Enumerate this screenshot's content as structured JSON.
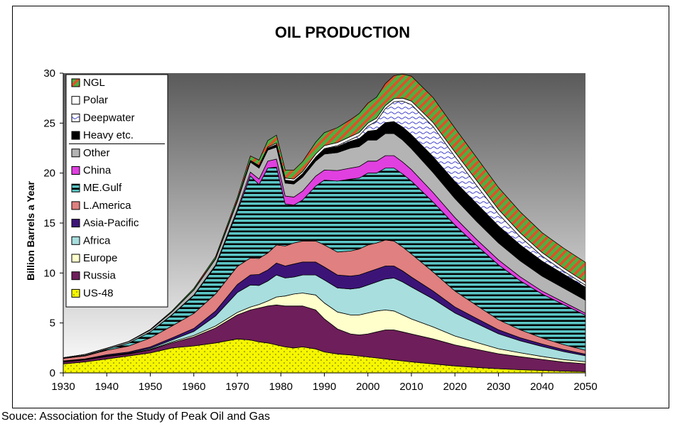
{
  "source": "Souce: Association for the Study of Peak Oil and Gas",
  "chart_data": {
    "type": "area",
    "stacked": true,
    "title": "OIL PRODUCTION",
    "xlabel": "",
    "ylabel": "Billion Barrels a Year",
    "xlim": [
      1930,
      2050
    ],
    "ylim": [
      0,
      30
    ],
    "xticks": [
      "1930",
      "1940",
      "1950",
      "1960",
      "1970",
      "1980",
      "1990",
      "2000",
      "2010",
      "2020",
      "2030",
      "2040",
      "2050"
    ],
    "yticks": [
      "0",
      "5",
      "10",
      "15",
      "20",
      "25",
      "30"
    ],
    "grid": false,
    "legend_position": "top-left",
    "background": "gradient-gray",
    "x": [
      1930,
      1935,
      1940,
      1945,
      1950,
      1955,
      1960,
      1965,
      1970,
      1973,
      1975,
      1977,
      1979,
      1981,
      1983,
      1985,
      1988,
      1990,
      1993,
      1996,
      1998,
      2000,
      2002,
      2004,
      2006,
      2008,
      2010,
      2015,
      2020,
      2025,
      2030,
      2035,
      2040,
      2045,
      2050
    ],
    "series": [
      {
        "name": "US-48",
        "color": "#f6f600",
        "pattern": "dots",
        "values": [
          0.9,
          1.1,
          1.4,
          1.7,
          2.0,
          2.5,
          2.7,
          3.0,
          3.4,
          3.3,
          3.1,
          3.0,
          2.8,
          2.6,
          2.5,
          2.6,
          2.4,
          2.1,
          1.9,
          1.8,
          1.7,
          1.6,
          1.5,
          1.4,
          1.3,
          1.2,
          1.1,
          0.9,
          0.7,
          0.55,
          0.42,
          0.32,
          0.25,
          0.18,
          0.12
        ]
      },
      {
        "name": "Russia",
        "color": "#6e1e5a",
        "pattern": "solid",
        "values": [
          0.2,
          0.2,
          0.25,
          0.2,
          0.3,
          0.5,
          0.9,
          1.5,
          2.4,
          3.0,
          3.4,
          3.7,
          4.0,
          4.1,
          4.2,
          4.1,
          3.9,
          3.3,
          2.5,
          2.1,
          2.1,
          2.3,
          2.6,
          2.9,
          3.0,
          2.9,
          2.8,
          2.5,
          2.1,
          1.8,
          1.5,
          1.3,
          1.1,
          0.9,
          0.8
        ]
      },
      {
        "name": "Europe",
        "color": "#ffffcc",
        "pattern": "solid",
        "values": [
          0.02,
          0.02,
          0.03,
          0.03,
          0.05,
          0.1,
          0.15,
          0.2,
          0.25,
          0.3,
          0.35,
          0.5,
          0.8,
          1.0,
          1.2,
          1.3,
          1.5,
          1.6,
          1.7,
          1.9,
          2.0,
          2.1,
          2.1,
          2.0,
          1.9,
          1.7,
          1.5,
          1.2,
          0.9,
          0.7,
          0.5,
          0.4,
          0.3,
          0.25,
          0.2
        ]
      },
      {
        "name": "Africa",
        "color": "#a8dede",
        "pattern": "solid",
        "values": [
          0.03,
          0.03,
          0.04,
          0.05,
          0.1,
          0.2,
          0.4,
          1.0,
          2.0,
          2.2,
          1.9,
          2.0,
          2.2,
          1.8,
          1.7,
          1.8,
          2.0,
          2.3,
          2.4,
          2.6,
          2.7,
          2.8,
          2.9,
          3.1,
          3.3,
          3.3,
          3.2,
          2.8,
          2.3,
          1.9,
          1.5,
          1.2,
          1.0,
          0.8,
          0.6
        ]
      },
      {
        "name": "Asia-Pacific",
        "color": "#3c1478",
        "pattern": "solid",
        "values": [
          0.05,
          0.05,
          0.1,
          0.1,
          0.15,
          0.2,
          0.3,
          0.5,
          0.8,
          1.0,
          1.1,
          1.1,
          1.2,
          1.2,
          1.3,
          1.3,
          1.3,
          1.3,
          1.3,
          1.3,
          1.3,
          1.3,
          1.3,
          1.3,
          1.2,
          1.1,
          1.0,
          0.8,
          0.6,
          0.5,
          0.4,
          0.3,
          0.25,
          0.2,
          0.15
        ]
      },
      {
        "name": "L.America",
        "color": "#e08080",
        "pattern": "solid",
        "values": [
          0.25,
          0.3,
          0.45,
          0.6,
          0.9,
          1.2,
          1.5,
          1.7,
          1.8,
          1.7,
          1.6,
          1.7,
          1.8,
          2.0,
          2.1,
          2.1,
          2.1,
          2.2,
          2.3,
          2.5,
          2.6,
          2.7,
          2.6,
          2.6,
          2.5,
          2.4,
          2.3,
          1.9,
          1.6,
          1.3,
          1.0,
          0.8,
          0.6,
          0.5,
          0.4
        ]
      },
      {
        "name": "ME.Gulf",
        "color": "#5cc6c6",
        "pattern": "stripes",
        "values": [
          0.02,
          0.05,
          0.1,
          0.3,
          0.6,
          1.1,
          1.8,
          2.8,
          5.5,
          8.2,
          7.4,
          8.5,
          7.8,
          4.2,
          3.8,
          4.1,
          5.5,
          6.5,
          7.1,
          7.2,
          7.1,
          7.2,
          7.0,
          7.2,
          7.3,
          7.3,
          7.3,
          7.0,
          6.6,
          6.0,
          5.5,
          4.9,
          4.4,
          4.0,
          3.5
        ]
      },
      {
        "name": "China",
        "color": "#e040e0",
        "pattern": "solid",
        "values": [
          0,
          0,
          0,
          0,
          0,
          0.02,
          0.05,
          0.1,
          0.2,
          0.4,
          0.55,
          0.7,
          0.8,
          0.8,
          0.8,
          0.9,
          1.0,
          1.0,
          1.05,
          1.1,
          1.15,
          1.2,
          1.2,
          1.25,
          1.25,
          1.2,
          1.15,
          0.95,
          0.75,
          0.6,
          0.5,
          0.4,
          0.3,
          0.25,
          0.2
        ]
      },
      {
        "name": "Other",
        "color": "#b4b4b4",
        "pattern": "solid",
        "values": [
          0.05,
          0.1,
          0.1,
          0.15,
          0.2,
          0.3,
          0.5,
          0.6,
          0.8,
          1.0,
          1.1,
          1.1,
          1.2,
          1.3,
          1.3,
          1.4,
          1.5,
          1.6,
          1.8,
          2.0,
          2.0,
          2.1,
          2.1,
          2.2,
          2.2,
          2.2,
          2.1,
          2.0,
          1.9,
          1.8,
          1.7,
          1.6,
          1.5,
          1.4,
          1.3
        ]
      },
      {
        "name": "Heavy etc.",
        "color": "#000000",
        "pattern": "solid",
        "values": [
          0,
          0,
          0,
          0,
          0,
          0,
          0.02,
          0.05,
          0.1,
          0.15,
          0.2,
          0.2,
          0.25,
          0.3,
          0.3,
          0.35,
          0.4,
          0.5,
          0.6,
          0.7,
          0.8,
          0.9,
          1.0,
          1.1,
          1.2,
          1.3,
          1.4,
          1.6,
          1.7,
          1.8,
          1.7,
          1.6,
          1.5,
          1.4,
          1.3
        ]
      },
      {
        "name": "Deepwater",
        "color": "#c8c8ff",
        "pattern": "waves",
        "values": [
          0,
          0,
          0,
          0,
          0,
          0,
          0,
          0,
          0,
          0,
          0,
          0,
          0,
          0,
          0,
          0,
          0,
          0.05,
          0.1,
          0.15,
          0.3,
          0.5,
          0.9,
          1.4,
          2.0,
          2.6,
          3.0,
          3.0,
          2.5,
          1.8,
          1.2,
          0.8,
          0.5,
          0.3,
          0.2
        ]
      },
      {
        "name": "Polar",
        "color": "#ffffff",
        "pattern": "solid",
        "values": [
          0,
          0,
          0,
          0,
          0,
          0,
          0,
          0,
          0,
          0.02,
          0.05,
          0.1,
          0.15,
          0.2,
          0.2,
          0.2,
          0.3,
          0.3,
          0.3,
          0.3,
          0.3,
          0.3,
          0.3,
          0.3,
          0.3,
          0.3,
          0.35,
          0.4,
          0.45,
          0.5,
          0.45,
          0.4,
          0.35,
          0.3,
          0.3
        ]
      },
      {
        "name": "NGL",
        "color": "#4eb040",
        "pattern": "diagonal",
        "values": [
          0,
          0,
          0,
          0.02,
          0.05,
          0.1,
          0.15,
          0.2,
          0.3,
          0.45,
          0.55,
          0.65,
          0.8,
          0.8,
          0.9,
          1.0,
          1.2,
          1.3,
          1.5,
          1.7,
          1.9,
          2.0,
          2.1,
          2.2,
          2.3,
          2.4,
          2.5,
          2.5,
          2.4,
          2.3,
          2.2,
          2.1,
          2.0,
          2.0,
          2.0
        ]
      }
    ],
    "legend_order": [
      "NGL",
      "Polar",
      "Deepwater",
      "Heavy etc.",
      "Other",
      "China",
      "ME.Gulf",
      "L.America",
      "Asia-Pacific",
      "Africa",
      "Europe",
      "Russia",
      "US-48"
    ]
  }
}
